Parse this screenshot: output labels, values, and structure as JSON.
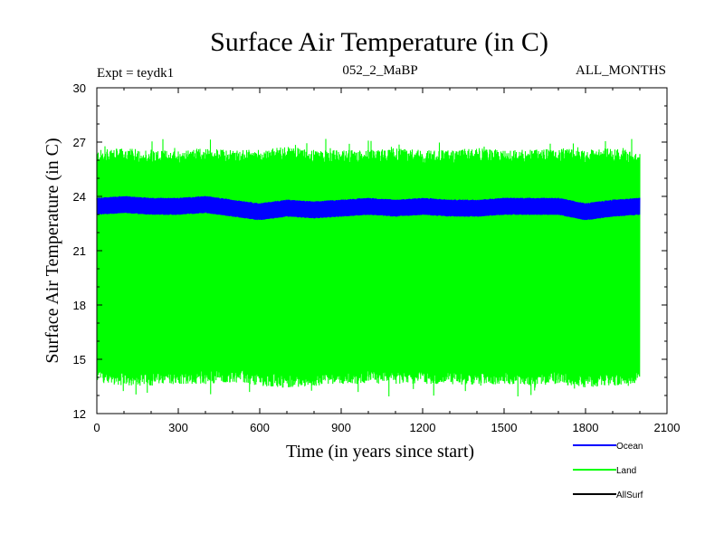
{
  "chart_data": {
    "type": "line",
    "title": "Surface Air Temperature (in C)",
    "subtitle_left": "Expt = teydk1",
    "subtitle_center": "052_2_MaBP",
    "subtitle_right": "ALL_MONTHS",
    "xlabel": "Time (in years since start)",
    "ylabel": "Surface Air Temperature (in C)",
    "xlim": [
      0,
      2100
    ],
    "ylim": [
      12,
      30
    ],
    "xticks": [
      0,
      300,
      600,
      900,
      1200,
      1500,
      1800,
      2100
    ],
    "yticks": [
      12,
      15,
      18,
      21,
      24,
      27,
      30
    ],
    "x_minor_step": 100,
    "y_minor_step": 1,
    "data_x_range": [
      0,
      2000
    ],
    "series": [
      {
        "name": "Land",
        "color": "#00ff00",
        "style": "seasonal-band",
        "x_samples": [
          0,
          100,
          200,
          300,
          400,
          500,
          600,
          700,
          800,
          900,
          1000,
          1100,
          1200,
          1300,
          1400,
          1500,
          1600,
          1700,
          1800,
          1900,
          2000
        ],
        "upper": [
          26.2,
          26.3,
          26.2,
          26.2,
          26.3,
          26.2,
          26.2,
          26.4,
          26.2,
          26.2,
          26.2,
          26.3,
          26.2,
          26.2,
          26.3,
          26.2,
          26.2,
          26.3,
          26.2,
          26.3,
          26.1
        ],
        "lower": [
          14.1,
          13.9,
          13.9,
          14.0,
          14.0,
          14.1,
          13.9,
          13.8,
          13.9,
          14.0,
          14.0,
          14.0,
          14.0,
          14.0,
          13.9,
          14.0,
          13.9,
          14.0,
          13.8,
          13.9,
          14.0
        ],
        "peak_max": 27.2,
        "trough_min": 12.9
      },
      {
        "name": "Ocean",
        "color": "#0000ff",
        "style": "seasonal-band",
        "x_samples": [
          0,
          100,
          200,
          300,
          400,
          500,
          600,
          700,
          800,
          900,
          1000,
          1100,
          1200,
          1300,
          1400,
          1500,
          1600,
          1700,
          1800,
          1900,
          2000
        ],
        "upper": [
          23.9,
          24.0,
          23.9,
          23.9,
          24.0,
          23.8,
          23.6,
          23.8,
          23.7,
          23.8,
          23.9,
          23.8,
          23.9,
          23.8,
          23.8,
          23.9,
          23.9,
          23.9,
          23.6,
          23.8,
          23.9
        ],
        "lower": [
          23.0,
          23.1,
          23.0,
          23.0,
          23.1,
          22.9,
          22.7,
          22.9,
          22.8,
          22.9,
          23.0,
          22.9,
          23.0,
          22.9,
          22.9,
          23.0,
          23.0,
          23.0,
          22.7,
          22.9,
          23.0
        ]
      },
      {
        "name": "AllSurf",
        "color": "#000000",
        "style": "line",
        "values": []
      }
    ],
    "legend": [
      {
        "name": "Ocean",
        "color": "#0000ff"
      },
      {
        "name": "Land",
        "color": "#00ff00"
      },
      {
        "name": "AllSurf",
        "color": "#000000"
      }
    ],
    "legend_position": "bottom-right, below plot"
  }
}
